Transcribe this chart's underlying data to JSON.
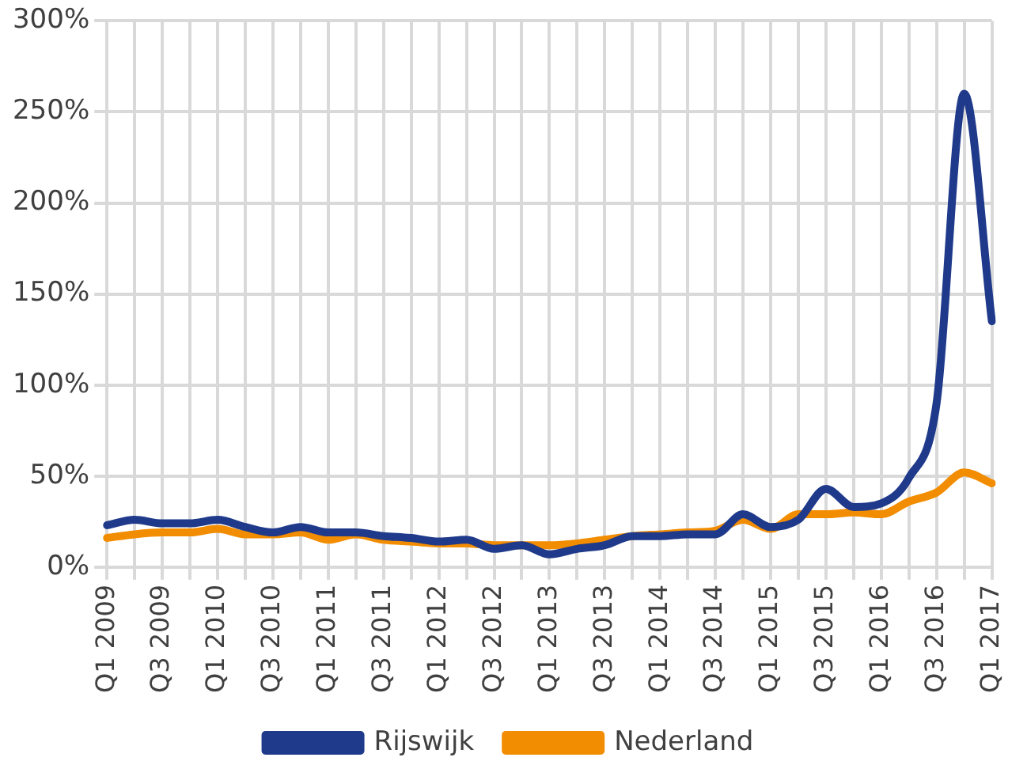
{
  "chart_data": {
    "type": "line",
    "categories": [
      "Q1 2009",
      null,
      "Q3 2009",
      null,
      "Q1 2010",
      null,
      "Q3 2010",
      null,
      "Q1 2011",
      null,
      "Q3 2011",
      null,
      "Q1 2012",
      null,
      "Q3 2012",
      null,
      "Q1 2013",
      null,
      "Q3 2013",
      null,
      "Q1 2014",
      null,
      "Q3 2014",
      null,
      "Q1 2015",
      null,
      "Q3 2015",
      null,
      "Q1 2016",
      null,
      "Q3 2016",
      null,
      "Q1 2017"
    ],
    "series": [
      {
        "name": "Rijswijk",
        "color": "#1f3a8a",
        "values": [
          23,
          26,
          24,
          24,
          26,
          22,
          19,
          22,
          19,
          19,
          17,
          16,
          14,
          15,
          10,
          12,
          7,
          10,
          12,
          17,
          17,
          18,
          18,
          29,
          22,
          26,
          43,
          33,
          35,
          49,
          90,
          260,
          135
        ]
      },
      {
        "name": "Nederland",
        "color": "#f28c00",
        "values": [
          16,
          18,
          19,
          19,
          21,
          18,
          18,
          19,
          15,
          18,
          15,
          14,
          13,
          13,
          12,
          12,
          12,
          13,
          15,
          17,
          18,
          19,
          20,
          26,
          21,
          29,
          29,
          30,
          29,
          36,
          41,
          52,
          46
        ]
      }
    ],
    "ylim": [
      0,
      300
    ],
    "yticks": [
      {
        "value": 0,
        "label": "0%"
      },
      {
        "value": 50,
        "label": "50%"
      },
      {
        "value": 100,
        "label": "100%"
      },
      {
        "value": 150,
        "label": "150%"
      },
      {
        "value": 200,
        "label": "200%"
      },
      {
        "value": 250,
        "label": "250%"
      },
      {
        "value": 300,
        "label": "300%"
      }
    ],
    "grid": true,
    "legend": "bottom",
    "marker": "none",
    "line_style": "solid"
  }
}
